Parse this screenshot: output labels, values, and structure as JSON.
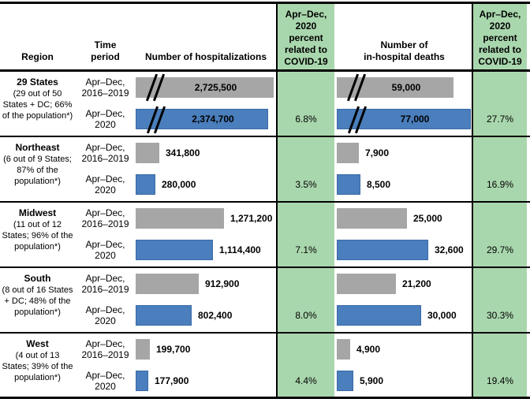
{
  "colors": {
    "bar_2016_2019": "#a6a6a6",
    "bar_2020": "#4a7ebc",
    "covid_percent_column": "#a9d7ad"
  },
  "header": {
    "region": "Region",
    "time_period": "Time\nperiod",
    "hospitalizations": "Number of hospitalizations",
    "covid_pct": "Apr–Dec,\n2020\npercent\nrelated to\nCOVID-19",
    "deaths": "Number of\nin-hospital deaths"
  },
  "time_periods": [
    "Apr–Dec,\n2016–2019",
    "Apr–Dec,\n2020"
  ],
  "rows": [
    {
      "region": "29 States",
      "note": "(29 out of 50 States + DC; 66% of the population*)",
      "hosp": {
        "values": [
          2725500,
          2374700
        ],
        "labels": [
          "2,725,500",
          "2,374,700"
        ],
        "pct": "6.8%"
      },
      "deaths": {
        "values": [
          59000,
          77000
        ],
        "labels": [
          "59,000",
          "77,000"
        ],
        "pct": "27.7%"
      }
    },
    {
      "region": "Northeast",
      "note": "(6 out of 9 States; 87% of the population*)",
      "hosp": {
        "values": [
          341800,
          280000
        ],
        "labels": [
          "341,800",
          "280,000"
        ],
        "pct": "3.5%"
      },
      "deaths": {
        "values": [
          7900,
          8500
        ],
        "labels": [
          "7,900",
          "8,500"
        ],
        "pct": "16.9%"
      }
    },
    {
      "region": "Midwest",
      "note": "(11 out of 12 States; 96% of the population*)",
      "hosp": {
        "values": [
          1271200,
          1114400
        ],
        "labels": [
          "1,271,200",
          "1,114,400"
        ],
        "pct": "7.1%"
      },
      "deaths": {
        "values": [
          25000,
          32600
        ],
        "labels": [
          "25,000",
          "32,600"
        ],
        "pct": "29.7%"
      }
    },
    {
      "region": "South",
      "note": "(8 out of 16 States + DC; 48% of the population*)",
      "hosp": {
        "values": [
          912900,
          802400
        ],
        "labels": [
          "912,900",
          "802,400"
        ],
        "pct": "8.0%"
      },
      "deaths": {
        "values": [
          21200,
          30000
        ],
        "labels": [
          "21,200",
          "30,000"
        ],
        "pct": "30.3%"
      }
    },
    {
      "region": "West",
      "note": "(4 out of 13 States; 39% of the population*)",
      "hosp": {
        "values": [
          199700,
          177900
        ],
        "labels": [
          "199,700",
          "177,900"
        ],
        "pct": "4.4%"
      },
      "deaths": {
        "values": [
          4900,
          5900
        ],
        "labels": [
          "4,900",
          "5,900"
        ],
        "pct": "19.4%"
      }
    }
  ],
  "chart_data": [
    {
      "type": "bar",
      "title": "Number of hospitalizations",
      "categories": [
        "29 States (29 out of 50 States + DC; 66% of the population*)",
        "Northeast (6 out of 9 States; 87% of the population*)",
        "Midwest (11 out of 12 States; 96% of the population*)",
        "South (8 out of 16 States + DC; 48% of the population*)",
        "West (4 out of 13 States; 39% of the population*)"
      ],
      "series": [
        {
          "name": "Apr–Dec, 2016–2019",
          "values": [
            2725500,
            341800,
            1271200,
            912900,
            199700
          ]
        },
        {
          "name": "Apr–Dec, 2020",
          "values": [
            2374700,
            280000,
            1114400,
            802400,
            177900
          ]
        }
      ],
      "percent_related_to_covid19_apr_dec_2020": [
        "6.8%",
        "3.5%",
        "7.1%",
        "8.0%",
        "4.4%"
      ],
      "axis_break_on": [
        "29 States"
      ],
      "orientation": "horizontal",
      "grid": false,
      "data_labels": true
    },
    {
      "type": "bar",
      "title": "Number of in-hospital deaths",
      "categories": [
        "29 States (29 out of 50 States + DC; 66% of the population*)",
        "Northeast (6 out of 9 States; 87% of the population*)",
        "Midwest (11 out of 12 States; 96% of the population*)",
        "South (8 out of 16 States + DC; 48% of the population*)",
        "West (4 out of 13 States; 39% of the population*)"
      ],
      "series": [
        {
          "name": "Apr–Dec, 2016–2019",
          "values": [
            59000,
            7900,
            25000,
            21200,
            4900
          ]
        },
        {
          "name": "Apr–Dec, 2020",
          "values": [
            77000,
            8500,
            32600,
            30000,
            5900
          ]
        }
      ],
      "percent_related_to_covid19_apr_dec_2020": [
        "27.7%",
        "16.9%",
        "29.7%",
        "30.3%",
        "19.4%"
      ],
      "axis_break_on": [
        "29 States"
      ],
      "orientation": "horizontal",
      "grid": false,
      "data_labels": true
    }
  ]
}
